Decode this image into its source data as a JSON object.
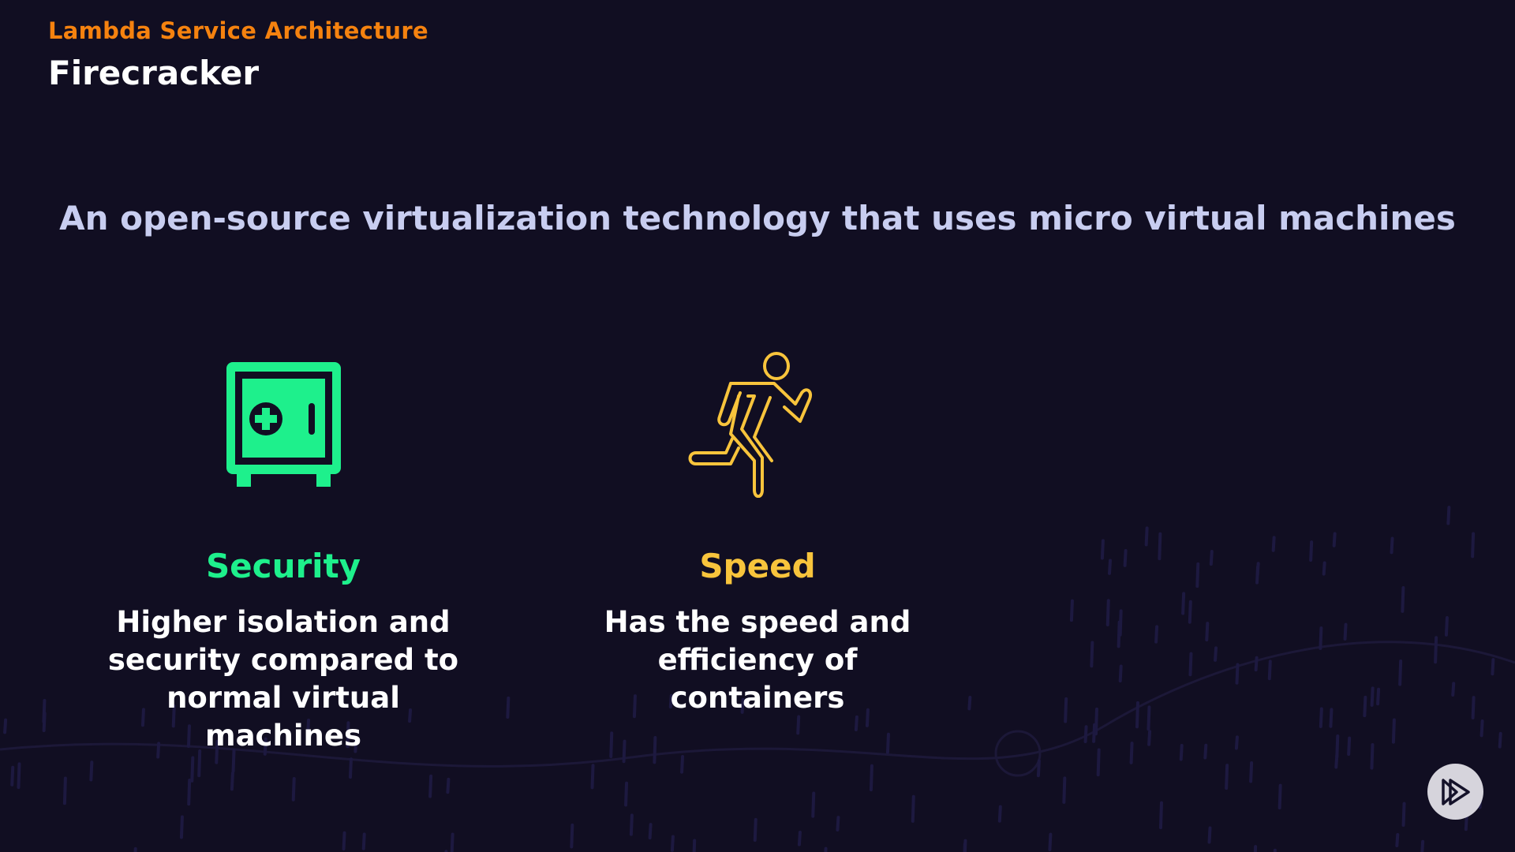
{
  "header": {
    "section": "Lambda Service Architecture",
    "title": "Firecracker"
  },
  "subtitle": "An open-source virtualization technology that uses micro virtual machines",
  "features": [
    {
      "icon": "safe-icon",
      "label": "Security",
      "description": "Higher isolation and security compared to normal virtual machines",
      "color": "#1ef08c"
    },
    {
      "icon": "runner-icon",
      "label": "Speed",
      "description": "Has the speed and efficiency of containers",
      "color": "#f8c43c"
    }
  ],
  "colors": {
    "accent": "#f5820f",
    "background": "#110e22"
  },
  "player": {
    "icon": "play-logo-icon"
  }
}
